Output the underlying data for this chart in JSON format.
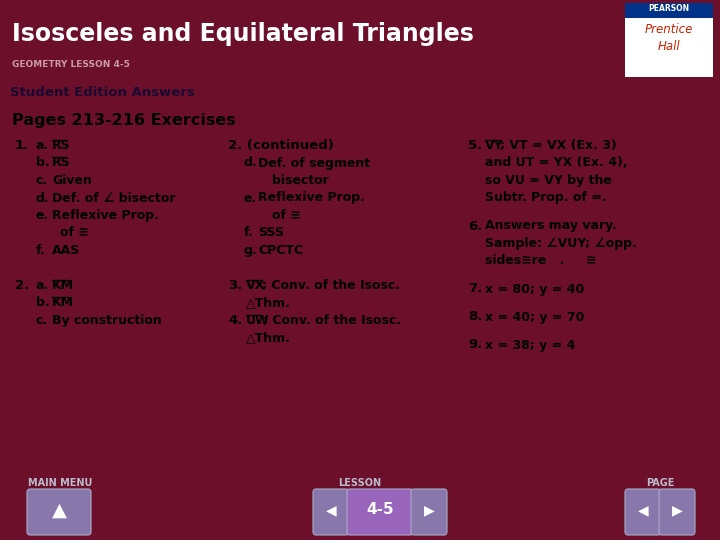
{
  "title": "Isosceles and Equilateral Triangles",
  "subtitle": "GEOMETRY LESSON 4-5",
  "subtitle2": "Student Edition Answers",
  "section": "Pages 213-216 Exercises",
  "header_bg": "#6b0f2b",
  "header_text_color": "#ffffff",
  "subtitle_bg": "#8080aa",
  "subtitle_text_color": "#1a0a30",
  "content_bg": "#ffffff",
  "footer_bg": "#6b0f2b",
  "nav_label_color": "#bbbbcc",
  "nav_button_bg": "#8877aa",
  "nav_center_bg": "#9966bb",
  "nav_button_text": "#ffffff",
  "lesson_label": "4-5",
  "pearson_bg": "#ffffff",
  "pearson_text1": "#003388",
  "pearson_text2": "#cc2200"
}
